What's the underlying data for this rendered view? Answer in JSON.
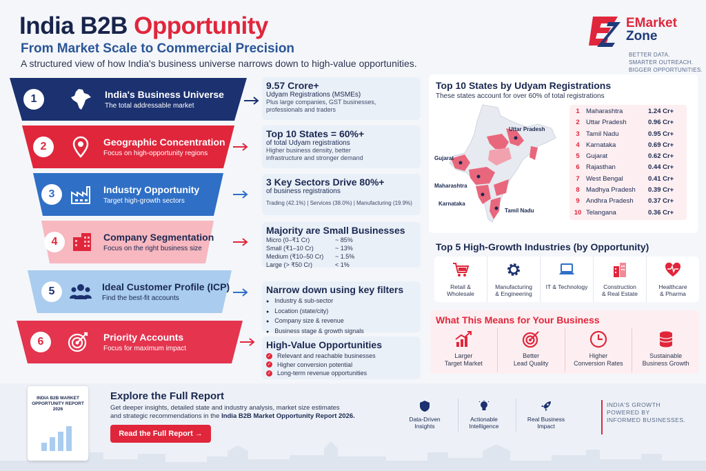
{
  "header": {
    "title_part1": "India B2B",
    "title_part2": "Opportunity",
    "subtitle": "From Market Scale to Commercial Precision",
    "lead": "A structured view of how India's business universe narrows down to high-value opportunities."
  },
  "logo": {
    "name_part1": "EMarket",
    "name_part2": "Zone",
    "tagline": [
      "BETTER DATA.",
      "SMARTER OUTREACH.",
      "BIGGER OPPORTUNITIES."
    ]
  },
  "funnel": [
    {
      "num": "1",
      "title": "India's Business Universe",
      "subtitle": "The total addressable market",
      "icon": "india-map-icon",
      "color": "#1b3170"
    },
    {
      "num": "2",
      "title": "Geographic Concentration",
      "subtitle": "Focus on high-opportunity regions",
      "icon": "location-pin-icon",
      "color": "#e0263b"
    },
    {
      "num": "3",
      "title": "Industry Opportunity",
      "subtitle": "Target high-growth sectors",
      "icon": "factory-icon",
      "color": "#2f6fc6"
    },
    {
      "num": "4",
      "title": "Company Segmentation",
      "subtitle": "Focus on the right business size",
      "icon": "buildings-icon",
      "color": "#f7b8c0"
    },
    {
      "num": "5",
      "title": "Ideal Customer Profile (ICP)",
      "subtitle": "Find the best-fit accounts",
      "icon": "users-icon",
      "color": "#a9ccef"
    },
    {
      "num": "6",
      "title": "Priority Accounts",
      "subtitle": "Focus for maximum impact",
      "icon": "target-icon",
      "color": "#e4344e"
    }
  ],
  "cards": {
    "c1": {
      "heading": "9.57 Crore+",
      "sub": "Udyam Registrations (MSMEs)",
      "desc": [
        "Plus large companies, GST businesses,",
        "professionals and traders"
      ]
    },
    "c2": {
      "heading": "Top 10 States = 60%+",
      "sub": "of total Udyam registrations",
      "desc": [
        "Higher business density, better",
        "infrastructure and stronger demand"
      ]
    },
    "c3": {
      "heading": "3 Key Sectors Drive 80%+",
      "sub": "of business registrations",
      "sectors": "Trading (42.1%)  |  Services (38.0%)  |  Manufacturing (19.9%)"
    },
    "c4": {
      "heading": "Majority are Small Businesses",
      "rows": [
        {
          "k": "Micro (0–₹1 Cr)",
          "v": "~ 85%"
        },
        {
          "k": "Small (₹1–10 Cr)",
          "v": "~ 13%"
        },
        {
          "k": "Medium (₹10–50 Cr)",
          "v": "~ 1.5%"
        },
        {
          "k": "Large (> ₹50 Cr)",
          "v": "< 1%"
        }
      ]
    },
    "c5": {
      "heading": "Narrow down using key filters",
      "items": [
        "Industry & sub-sector",
        "Location (state/city)",
        "Company size & revenue",
        "Business stage & growth signals"
      ]
    },
    "c6": {
      "heading": "High-Value Opportunities",
      "items": [
        "Relevant and reachable businesses",
        "Higher conversion potential",
        "Long-term revenue opportunities"
      ]
    }
  },
  "states": {
    "title": "Top 10 States by Udyam Registrations",
    "subtitle": "These states account for over 60% of total registrations",
    "map_labels": [
      "Uttar Pradesh",
      "Gujarat",
      "Maharashtra",
      "Karnataka",
      "Tamil Nadu"
    ],
    "rows": [
      {
        "rank": "1",
        "name": "Maharashtra",
        "value": "1.24 Cr+"
      },
      {
        "rank": "2",
        "name": "Uttar Pradesh",
        "value": "0.96 Cr+"
      },
      {
        "rank": "3",
        "name": "Tamil Nadu",
        "value": "0.95 Cr+"
      },
      {
        "rank": "4",
        "name": "Karnataka",
        "value": "0.69 Cr+"
      },
      {
        "rank": "5",
        "name": "Gujarat",
        "value": "0.62 Cr+"
      },
      {
        "rank": "6",
        "name": "Rajasthan",
        "value": "0.44 Cr+"
      },
      {
        "rank": "7",
        "name": "West Bengal",
        "value": "0.41 Cr+"
      },
      {
        "rank": "8",
        "name": "Madhya Pradesh",
        "value": "0.39 Cr+"
      },
      {
        "rank": "9",
        "name": "Andhra Pradesh",
        "value": "0.37 Cr+"
      },
      {
        "rank": "10",
        "name": "Telangana",
        "value": "0.36 Cr+"
      }
    ]
  },
  "industries": {
    "title": "Top 5 High-Growth Industries (by Opportunity)",
    "items": [
      {
        "label": "Retail &\nWholesale",
        "icon": "shopping-cart-icon"
      },
      {
        "label": "Manufacturing\n& Engineering",
        "icon": "gear-icon"
      },
      {
        "label": "IT & Technology",
        "icon": "laptop-icon"
      },
      {
        "label": "Construction\n& Real Estate",
        "icon": "building-icon"
      },
      {
        "label": "Healthcare\n& Pharma",
        "icon": "heartbeat-icon"
      }
    ]
  },
  "means": {
    "title": "What This Means for Your Business",
    "items": [
      {
        "label": "Larger\nTarget Market",
        "icon": "growth-chart-icon"
      },
      {
        "label": "Better\nLead Quality",
        "icon": "target-icon"
      },
      {
        "label": "Higher\nConversion Rates",
        "icon": "clock-icon"
      },
      {
        "label": "Sustainable\nBusiness Growth",
        "icon": "coins-icon"
      }
    ]
  },
  "footer": {
    "cover_title": "INDIA B2B MARKET OPPORTUNITY REPORT 2026",
    "explore_title": "Explore the Full Report",
    "explore_line1": "Get deeper insights, detailed state and industry analysis, market size estimates",
    "explore_line2_prefix": "and strategic recommendations in the ",
    "explore_line2_bold": "India B2B Market Opportunity Report 2026.",
    "cta": "Read the Full Report →",
    "features": [
      {
        "label": "Data-Driven\nInsights",
        "icon": "shield-icon"
      },
      {
        "label": "Actionable\nIntelligence",
        "icon": "lightbulb-icon"
      },
      {
        "label": "Real Business\nImpact",
        "icon": "rocket-icon"
      }
    ],
    "tagline": [
      "INDIA'S GROWTH",
      "POWERED BY",
      "INFORMED BUSINESSES."
    ]
  },
  "colors": {
    "navy": "#1b2a4a",
    "red": "#e0263b",
    "blue": "#2f6fc6"
  }
}
